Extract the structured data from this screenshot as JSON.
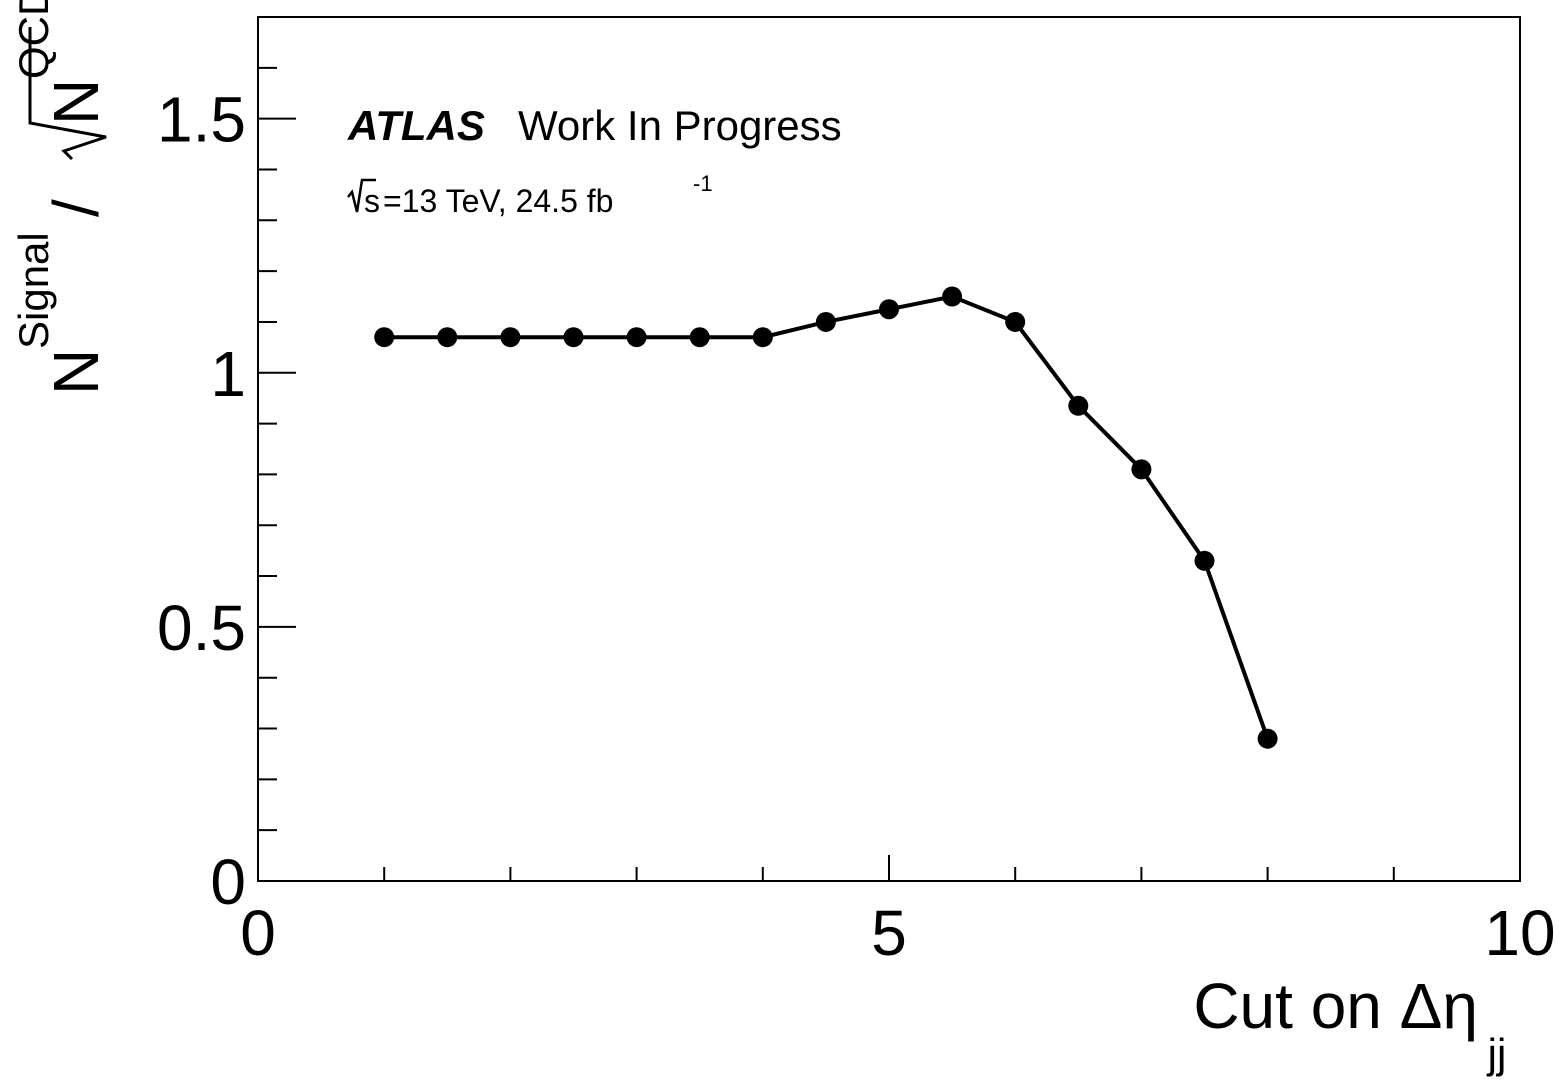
{
  "chart_data": {
    "type": "line",
    "title": "",
    "xlabel_main": "Cut on Δη",
    "xlabel_sub": "jj",
    "ylabel_n1": "N",
    "ylabel_sub1": "Signal",
    "ylabel_slash": " / ",
    "ylabel_n2": "N",
    "ylabel_sub2": "QCD",
    "xlim": [
      0,
      10
    ],
    "ylim": [
      0,
      1.7
    ],
    "x_ticks": [
      0,
      5,
      10
    ],
    "y_ticks": [
      0,
      0.5,
      1,
      1.5
    ],
    "grid": false,
    "annotation_brand": "ATLAS",
    "annotation_status": "Work In Progress",
    "energy_s": "s",
    "energy_rest": "=13 TeV, 24.5 fb",
    "energy_sup": "-1",
    "series": [
      {
        "x": [
          1.0,
          1.5,
          2.0,
          2.5,
          3.0,
          3.5,
          4.0,
          4.5,
          5.0,
          5.5,
          6.0,
          6.5,
          7.0,
          7.5,
          8.0
        ],
        "y": [
          1.07,
          1.07,
          1.07,
          1.07,
          1.07,
          1.07,
          1.07,
          1.1,
          1.125,
          1.15,
          1.1,
          0.935,
          0.81,
          0.63,
          0.28
        ]
      }
    ]
  }
}
